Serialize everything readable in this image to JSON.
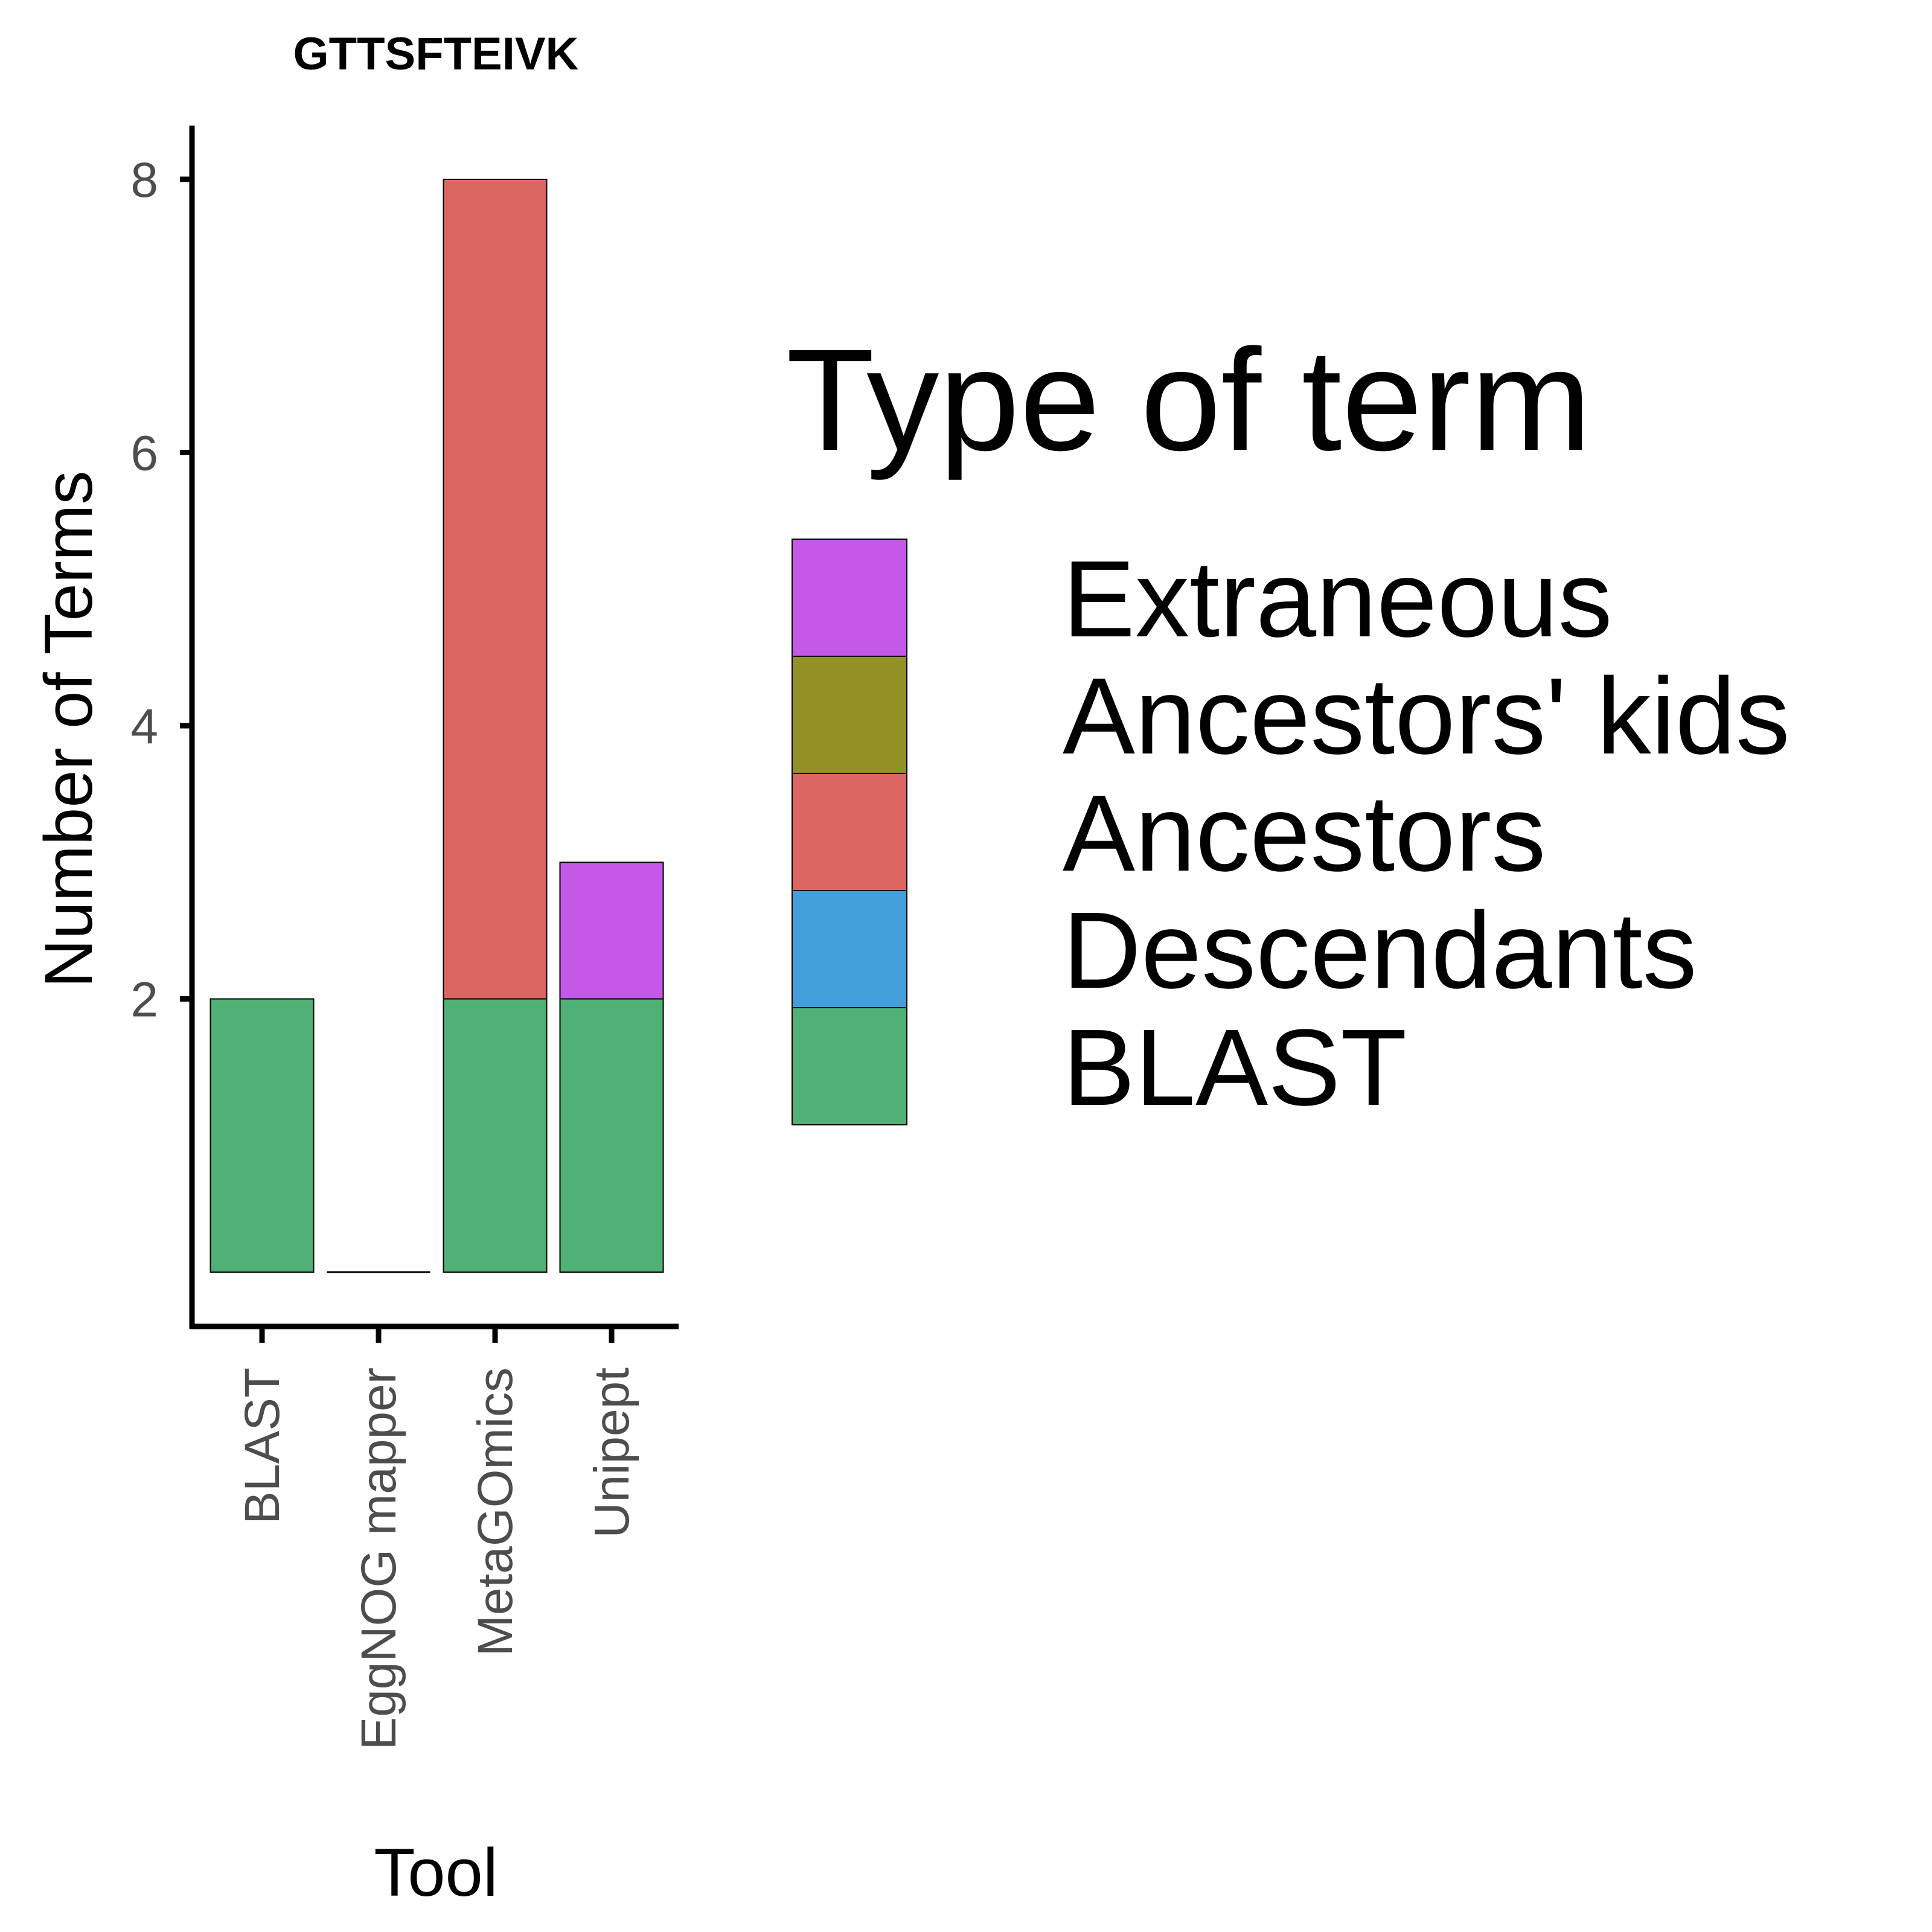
{
  "chart_data": {
    "type": "bar",
    "stacked": true,
    "title": "GTTSFTEIVK",
    "xlabel": "Tool",
    "ylabel": "Number of Terms",
    "categories": [
      "BLAST",
      "EggNOG mapper",
      "MetaGOmics",
      "Unipept"
    ],
    "yticks": [
      2,
      4,
      6,
      8
    ],
    "ytick_labels": [
      "2",
      "4",
      "6",
      "8"
    ],
    "ylim": [
      0,
      8
    ],
    "grid": false,
    "legend": {
      "title": "Type of term",
      "position": "right",
      "entries": [
        "Extraneous",
        "Ancestors' kids",
        "Ancestors",
        "Descendants",
        "BLAST"
      ]
    },
    "series": [
      {
        "name": "BLAST",
        "color": "#4fb175",
        "values": [
          2,
          0,
          2,
          2
        ]
      },
      {
        "name": "Descendants",
        "color": "#439fdb",
        "values": [
          0,
          0,
          0,
          0
        ]
      },
      {
        "name": "Ancestors",
        "color": "#dc6762",
        "values": [
          0,
          0,
          6,
          0
        ]
      },
      {
        "name": "Ancestors' kids",
        "color": "#929128",
        "values": [
          0,
          0,
          0,
          0
        ]
      },
      {
        "name": "Extraneous",
        "color": "#c459e8",
        "values": [
          0,
          0,
          0,
          1
        ]
      }
    ]
  }
}
